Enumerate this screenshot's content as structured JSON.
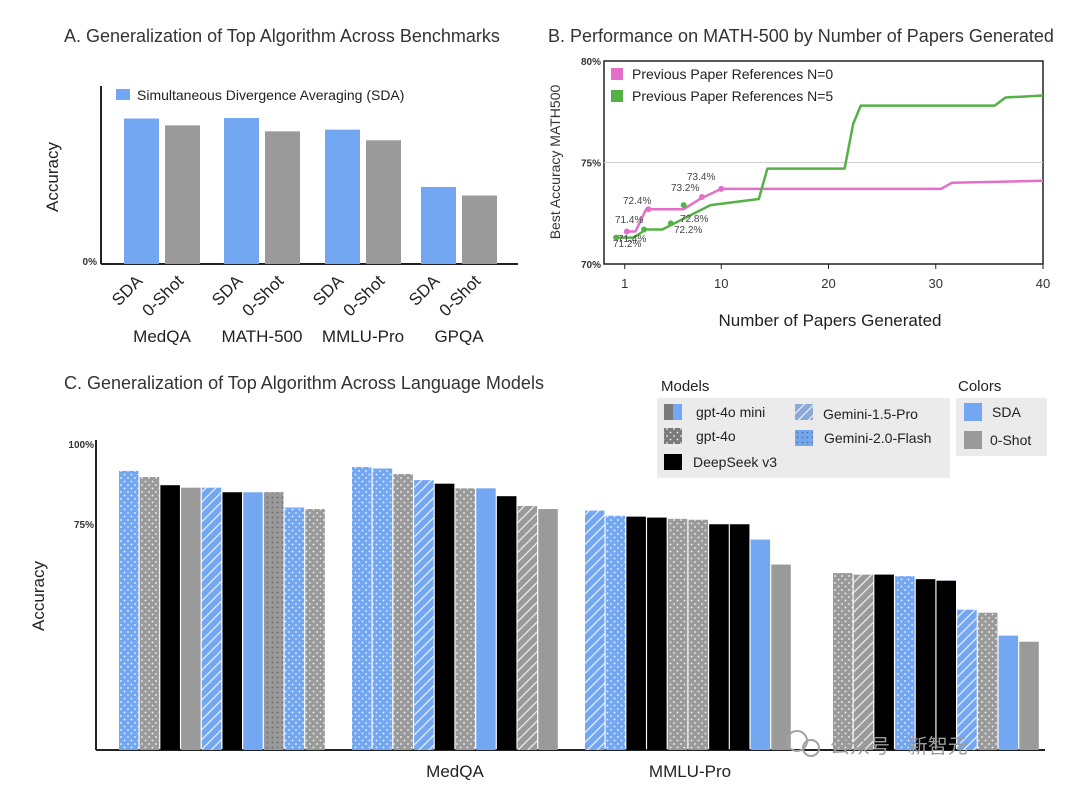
{
  "colors": {
    "sda": "#74a7f2",
    "zero_shot": "#9a9a9a",
    "pink": "#e36fc9",
    "green": "#55b145",
    "legend_bg": "#ebebeb"
  },
  "panel_a": {
    "title": "A.  Generalization of Top Algorithm Across Benchmarks",
    "legend": "Simultaneous Divergence Averaging (SDA)",
    "ylabel": "Accuracy",
    "ytick": "0%"
  },
  "panel_b": {
    "title": "B.  Performance on MATH-500 by Number of Papers Generated",
    "xlabel": "Number of Papers Generated",
    "ylabel": "Best Accuracy MATH500",
    "legend_pink": "Previous Paper References N=0",
    "legend_green": "Previous Paper References N=5"
  },
  "panel_c": {
    "title": "C.  Generalization of Top Algorithm Across Language Models",
    "ylabel": "Accuracy",
    "yticks": [
      "100%",
      "75%"
    ],
    "xlabels": [
      "MedQA",
      "MMLU-Pro"
    ],
    "models_title": "Models",
    "models": [
      "gpt-4o mini",
      "gpt-4o",
      "DeepSeek v3",
      "Gemini-1.5-Pro",
      "Gemini-2.0-Flash"
    ],
    "colors_title": "Colors",
    "color_labels": [
      "SDA",
      "0-Shot"
    ]
  },
  "watermark": "公众号 · 新智元",
  "chart_data": [
    {
      "type": "bar",
      "title": "A.  Generalization of Top Algorithm Across Benchmarks",
      "ylabel": "Accuracy",
      "categories": [
        "MedQA",
        "MATH-500",
        "MMLU-Pro",
        "GPQA"
      ],
      "bar_labels": [
        "SDA",
        "0-Shot"
      ],
      "series": [
        {
          "name": "SDA",
          "values": [
            85,
            85.3,
            78.5,
            45
          ]
        },
        {
          "name": "0-Shot",
          "values": [
            81,
            77.5,
            72.3,
            40
          ]
        }
      ],
      "ylim": [
        0,
        104
      ]
    },
    {
      "type": "line",
      "title": "B.  Performance on MATH-500 by Number of Papers Generated",
      "xlabel": "Number of Papers Generated",
      "ylabel": "Best Accuracy MATH500",
      "xlim": [
        0,
        40
      ],
      "ylim": [
        70,
        80
      ],
      "xticks": [
        1,
        10,
        20,
        30,
        40
      ],
      "yticks": [
        "70%",
        "75%",
        "80%"
      ],
      "grid": true,
      "legend": "top-left",
      "series": [
        {
          "name": "Previous Paper References N=0",
          "x": [
            1,
            2,
            3,
            6.5,
            8,
            10,
            30.5,
            31.5,
            40
          ],
          "y": [
            71.6,
            71.6,
            72.7,
            72.7,
            73.2,
            73.7,
            73.7,
            74.0,
            74.1
          ]
        },
        {
          "name": "Previous Paper References N=5",
          "x": [
            0,
            1.8,
            3,
            4.5,
            6,
            9,
            13.5,
            14.3,
            21.5,
            22.3,
            23,
            35.5,
            36.5,
            40
          ],
          "y": [
            71.3,
            71.3,
            71.7,
            71.7,
            72.1,
            72.9,
            73.2,
            74.7,
            74.7,
            76.9,
            77.8,
            77.8,
            78.2,
            78.3
          ]
        }
      ],
      "annotations": [
        "71.4%",
        "72.4%",
        "73.2%",
        "73.4%",
        "71.2%",
        "71.4%",
        "72.2%",
        "72.8%"
      ]
    },
    {
      "type": "bar",
      "title": "C.  Generalization of Top Algorithm Across Language Models",
      "ylabel": "Accuracy",
      "ylim": [
        0,
        100
      ],
      "yticks": [
        "100%",
        "75%"
      ],
      "groups": [
        {
          "label": "",
          "bars": [
            {
              "color": "SDA",
              "model": "gpt-4o",
              "value": 91.5
            },
            {
              "color": "0-Shot",
              "model": "gpt-4o",
              "value": 89.5
            },
            {
              "color": "SDA",
              "model": "DeepSeek v3",
              "value": 86.8
            },
            {
              "color": "0-Shot",
              "model": "gpt-4o mini",
              "value": 86
            },
            {
              "color": "SDA",
              "model": "Gemini-1.5-Pro",
              "value": 86
            },
            {
              "color": "0-Shot",
              "model": "DeepSeek v3",
              "value": 84.5
            },
            {
              "color": "SDA",
              "model": "gpt-4o mini",
              "value": 84.5
            },
            {
              "color": "0-Shot",
              "model": "Gemini-2.0-Flash",
              "value": 84.5
            },
            {
              "color": "SDA",
              "model": "gpt-4o",
              "value": 79.5
            },
            {
              "color": "0-Shot",
              "model": "gpt-4o",
              "value": 79
            }
          ]
        },
        {
          "label": "MedQA",
          "bars": [
            {
              "color": "SDA",
              "model": "gpt-4o",
              "value": 92.8
            },
            {
              "color": "SDA",
              "model": "gpt-4o",
              "value": 92.3
            },
            {
              "color": "0-Shot",
              "model": "gpt-4o",
              "value": 90.5
            },
            {
              "color": "SDA",
              "model": "Gemini-1.5-Pro",
              "value": 88.5
            },
            {
              "color": "SDA",
              "model": "DeepSeek v3",
              "value": 87.3
            },
            {
              "color": "0-Shot",
              "model": "gpt-4o",
              "value": 85.8
            },
            {
              "color": "SDA",
              "model": "gpt-4o mini",
              "value": 85.8
            },
            {
              "color": "0-Shot",
              "model": "DeepSeek v3",
              "value": 83.2
            },
            {
              "color": "0-Shot",
              "model": "Gemini-1.5-Pro",
              "value": 80
            },
            {
              "color": "0-Shot",
              "model": "gpt-4o mini",
              "value": 79
            }
          ]
        },
        {
          "label": "MMLU-Pro",
          "bars": [
            {
              "color": "SDA",
              "model": "Gemini-1.5-Pro",
              "value": 78.5
            },
            {
              "color": "SDA",
              "model": "gpt-4o",
              "value": 76.8
            },
            {
              "color": "SDA",
              "model": "DeepSeek v3",
              "value": 76.5
            },
            {
              "color": "SDA",
              "model": "DeepSeek v3",
              "value": 76.2
            },
            {
              "color": "0-Shot",
              "model": "gpt-4o",
              "value": 75.8
            },
            {
              "color": "0-Shot",
              "model": "gpt-4o",
              "value": 75.5
            },
            {
              "color": "0-Shot",
              "model": "DeepSeek v3",
              "value": 74
            },
            {
              "color": "0-Shot",
              "model": "DeepSeek v3",
              "value": 74
            },
            {
              "color": "SDA",
              "model": "gpt-4o mini",
              "value": 69
            },
            {
              "color": "0-Shot",
              "model": "gpt-4o mini",
              "value": 60.8
            }
          ]
        },
        {
          "label": "",
          "bars": [
            {
              "color": "0-Shot",
              "model": "gpt-4o",
              "value": 58
            },
            {
              "color": "0-Shot",
              "model": "Gemini-1.5-Pro",
              "value": 57.5
            },
            {
              "color": "0-Shot",
              "model": "DeepSeek v3",
              "value": 57.5
            },
            {
              "color": "SDA",
              "model": "gpt-4o",
              "value": 57
            },
            {
              "color": "SDA",
              "model": "DeepSeek v3",
              "value": 56
            },
            {
              "color": "SDA",
              "model": "DeepSeek v3",
              "value": 55.5
            },
            {
              "color": "SDA",
              "model": "Gemini-1.5-Pro",
              "value": 46
            },
            {
              "color": "0-Shot",
              "model": "gpt-4o",
              "value": 45
            },
            {
              "color": "SDA",
              "model": "gpt-4o mini",
              "value": 37.5
            },
            {
              "color": "0-Shot",
              "model": "gpt-4o mini",
              "value": 35.5
            }
          ]
        }
      ]
    }
  ]
}
